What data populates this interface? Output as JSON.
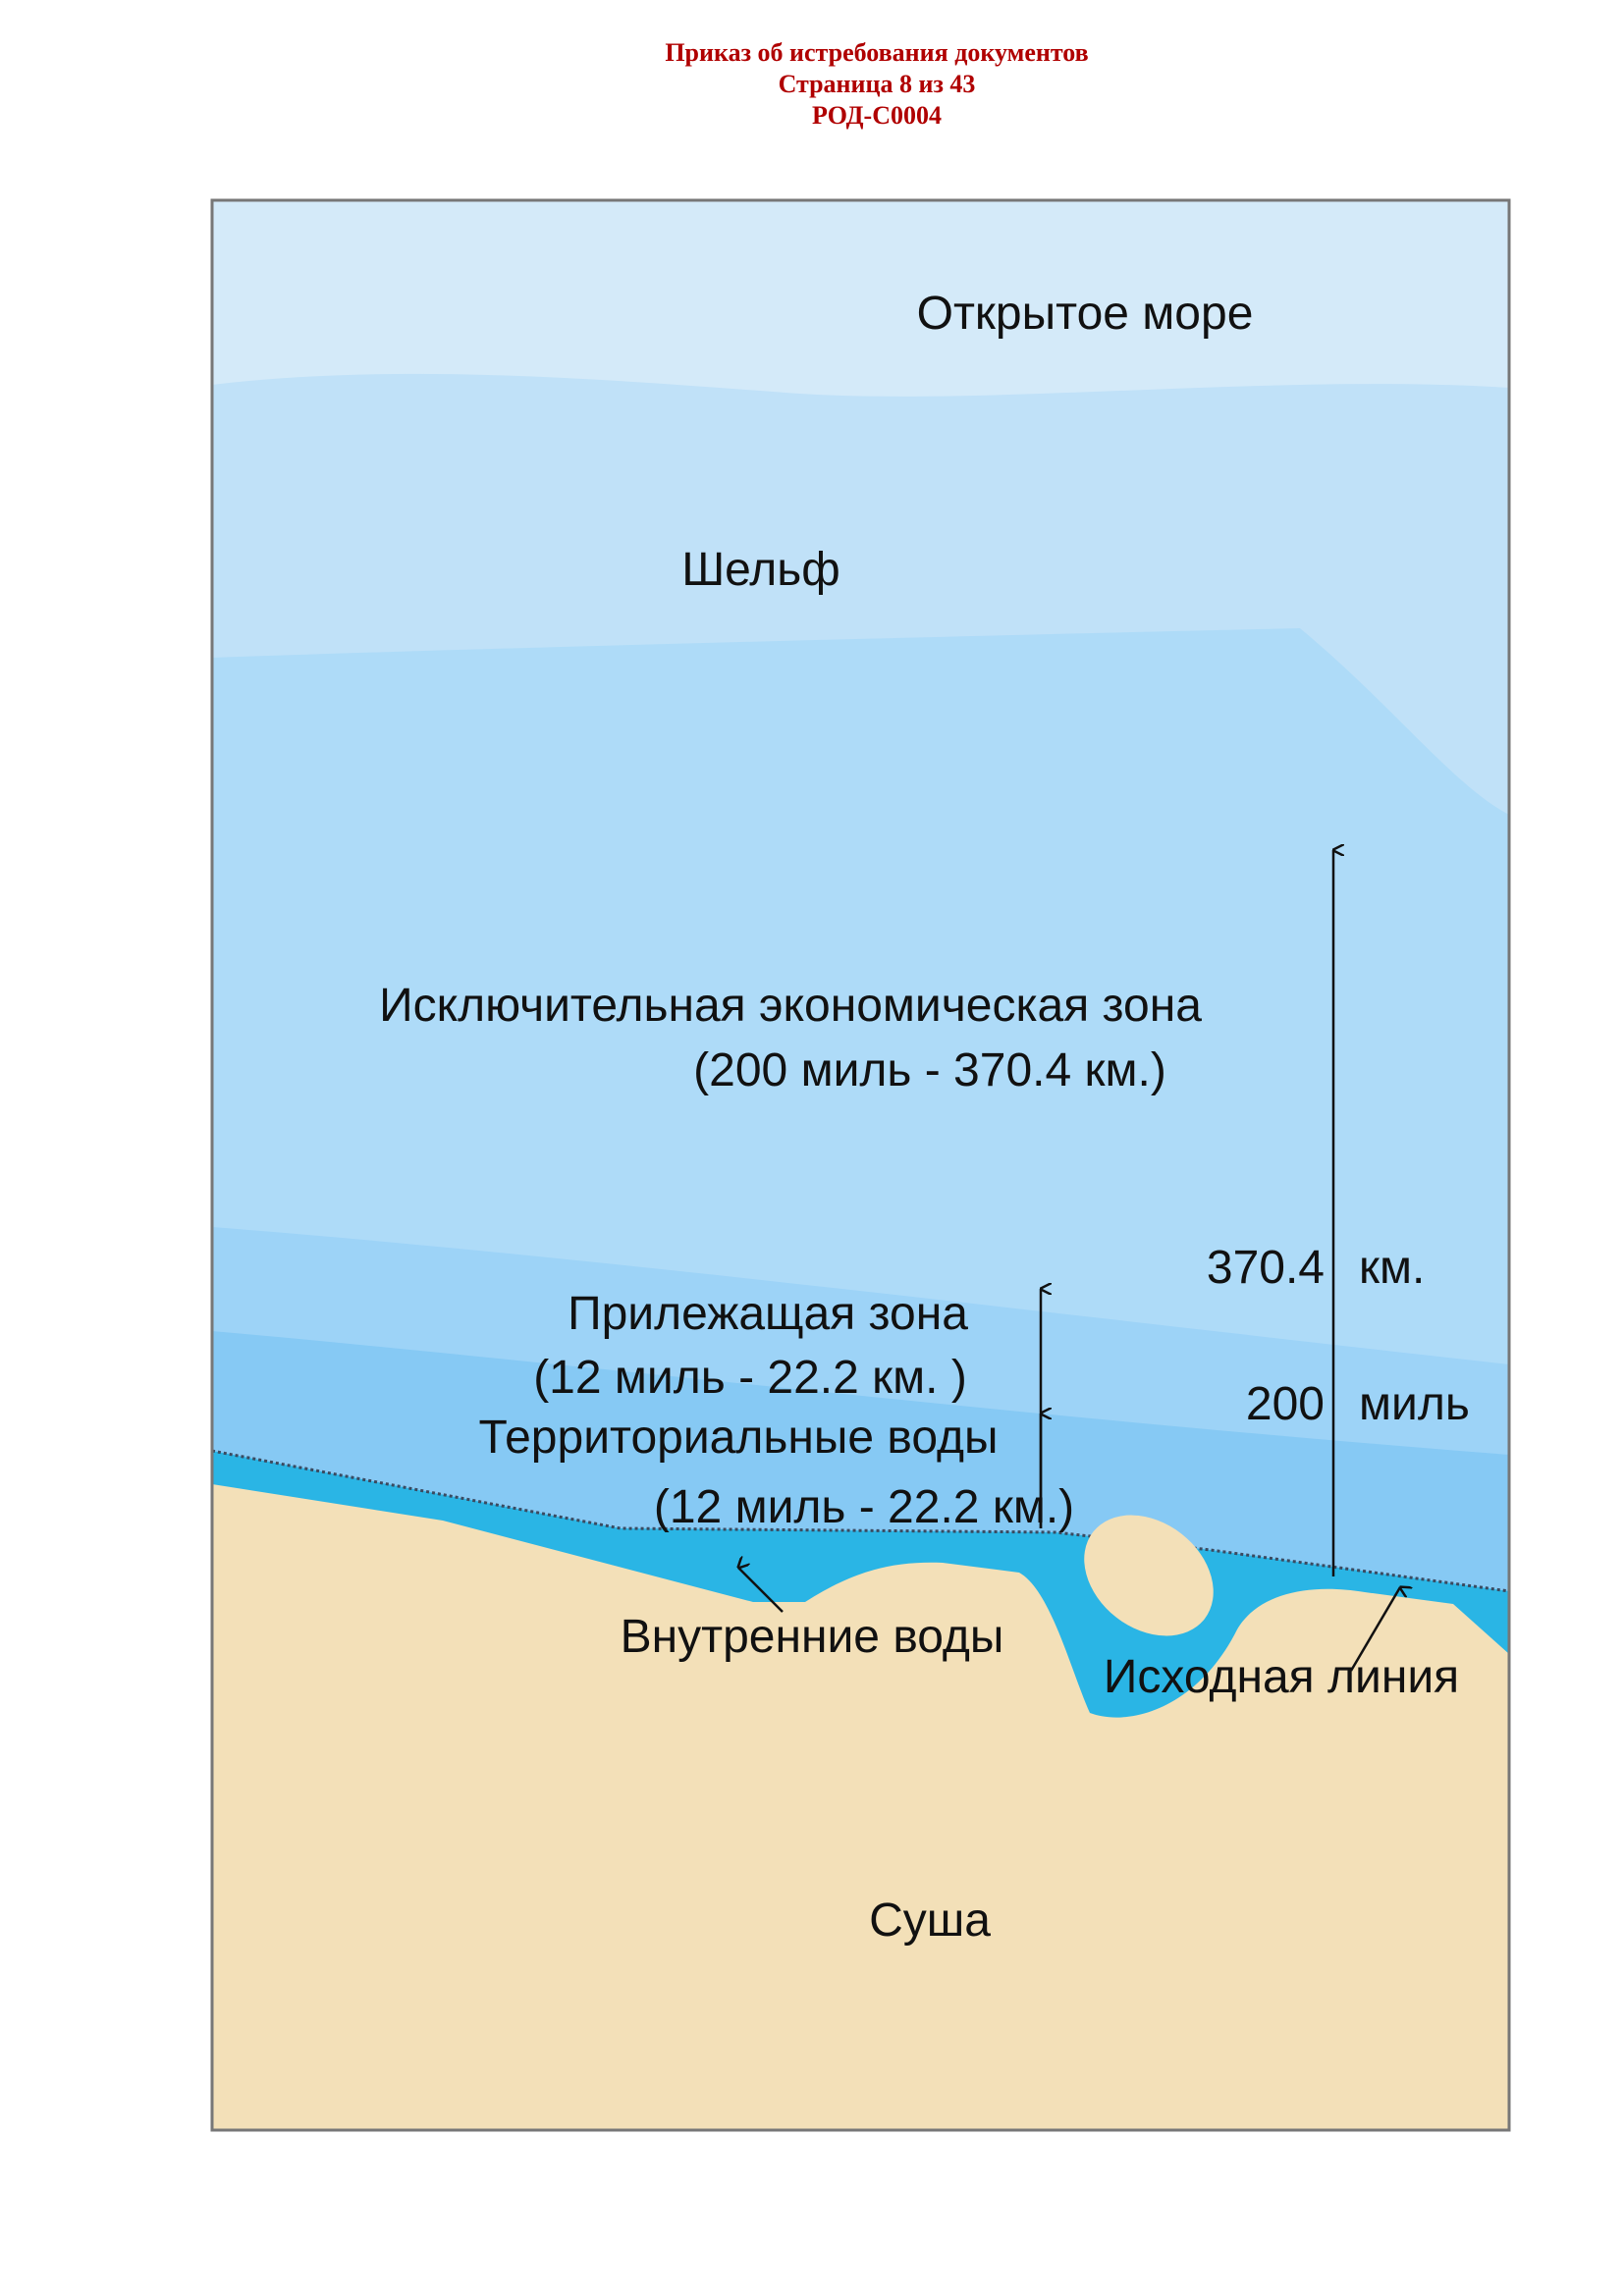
{
  "header": {
    "title": "Приказ об истребования документов",
    "page": "Страница 8 из 43",
    "code": "РОД-С0004"
  },
  "diagram": {
    "labels": {
      "high_seas": "Открытое море",
      "shelf": "Шельф",
      "eez": "Исключительная экономическая зона",
      "eez_range": "(200 миль - 370.4 км.)",
      "km_value": "370.4",
      "km_unit": "км.",
      "miles_value": "200",
      "miles_unit": "миль",
      "contiguous": "Прилежащая зона",
      "contiguous_range": "(12 миль - 22.2 км. )",
      "territorial": "Территориальные воды",
      "territorial_range": "(12 миль - 22.2 км.)",
      "internal": "Внутренние воды",
      "baseline": "Исходная линия",
      "land": "Суша"
    },
    "colors": {
      "high_seas": "#d4eaf9",
      "shelf": "#c0e1f8",
      "eez": "#aedbf8",
      "contiguous": "#9dd3f7",
      "territorial": "#86c9f4",
      "internal": "#2ab5e5",
      "land": "#f3e0b8",
      "header": "#b00000"
    }
  }
}
